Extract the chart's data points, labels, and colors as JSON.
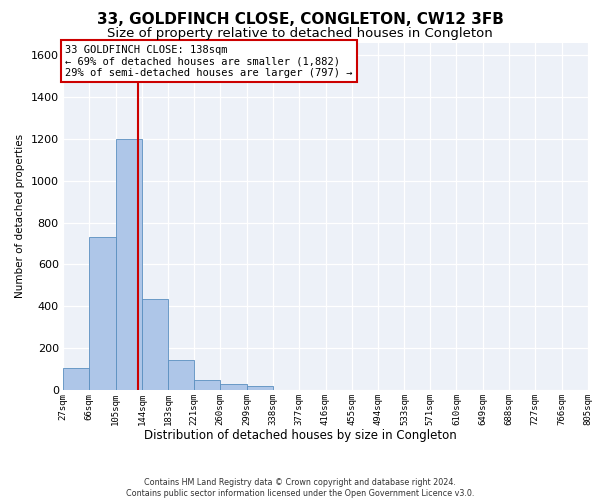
{
  "title": "33, GOLDFINCH CLOSE, CONGLETON, CW12 3FB",
  "subtitle": "Size of property relative to detached houses in Congleton",
  "xlabel": "Distribution of detached houses by size in Congleton",
  "ylabel": "Number of detached properties",
  "footer_line1": "Contains HM Land Registry data © Crown copyright and database right 2024.",
  "footer_line2": "Contains public sector information licensed under the Open Government Licence v3.0.",
  "bar_edges": [
    27,
    66,
    105,
    144,
    183,
    221,
    260,
    299,
    338,
    377,
    416,
    455,
    494,
    533,
    571,
    610,
    649,
    688,
    727,
    766,
    805
  ],
  "bar_heights": [
    105,
    730,
    1200,
    435,
    145,
    50,
    30,
    20,
    0,
    0,
    0,
    0,
    0,
    0,
    0,
    0,
    0,
    0,
    0,
    0
  ],
  "bar_color": "#aec6e8",
  "bar_edge_color": "#5a8fc0",
  "property_size": 138,
  "property_line_color": "#cc0000",
  "annotation_line1": "33 GOLDFINCH CLOSE: 138sqm",
  "annotation_line2": "← 69% of detached houses are smaller (1,882)",
  "annotation_line3": "29% of semi-detached houses are larger (797) →",
  "annotation_box_color": "#cc0000",
  "ylim": [
    0,
    1660
  ],
  "yticks": [
    0,
    200,
    400,
    600,
    800,
    1000,
    1200,
    1400,
    1600
  ],
  "bg_color": "#edf1f8",
  "grid_color": "#ffffff",
  "title_fontsize": 11,
  "subtitle_fontsize": 9.5
}
